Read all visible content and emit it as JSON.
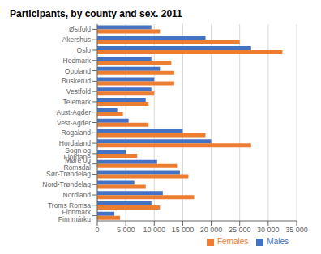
{
  "chart_data": {
    "type": "bar",
    "title": "Participants, by county and sex. 2011",
    "orientation": "horizontal",
    "categories": [
      "Østfold",
      "Akershus",
      "Oslo",
      "Hedmark",
      "Oppland",
      "Buskerud",
      "Vestfold",
      "Telemark",
      "Aust-Agder",
      "Vest-Agder",
      "Rogaland",
      "Hordaland",
      "Sogn og Fjordane",
      "Møre og Romsdal",
      "Sør-Trøndelag",
      "Nord-Trøndelag",
      "Nordland",
      "Troms Romsa",
      "Finnmark Finnmárku"
    ],
    "series": [
      {
        "name": "Males",
        "color": "#4472C4",
        "values": [
          9500,
          19000,
          27000,
          9500,
          11000,
          10000,
          9500,
          8500,
          3500,
          5500,
          15000,
          20000,
          5000,
          10500,
          14500,
          6500,
          11500,
          9500,
          3000
        ]
      },
      {
        "name": "Females",
        "color": "#ED7D31",
        "values": [
          11000,
          25000,
          32500,
          13000,
          13500,
          13500,
          10000,
          9000,
          4500,
          9000,
          19000,
          27000,
          7000,
          14000,
          16000,
          8500,
          17000,
          11000,
          4000
        ]
      }
    ],
    "xlim": [
      0,
      35000
    ],
    "xticks": [
      0,
      {
        "value": 5000,
        "label": "5 000"
      },
      {
        "value": 10000,
        "label": "10 000"
      },
      {
        "value": 15000,
        "label": "15 000"
      },
      {
        "value": 20000,
        "label": "20 000"
      },
      {
        "value": 25000,
        "label": "25 000"
      },
      {
        "value": 30000,
        "label": "30 000"
      },
      {
        "value": 35000,
        "label": "35 000"
      }
    ],
    "grid": true,
    "legend": "lower right"
  }
}
